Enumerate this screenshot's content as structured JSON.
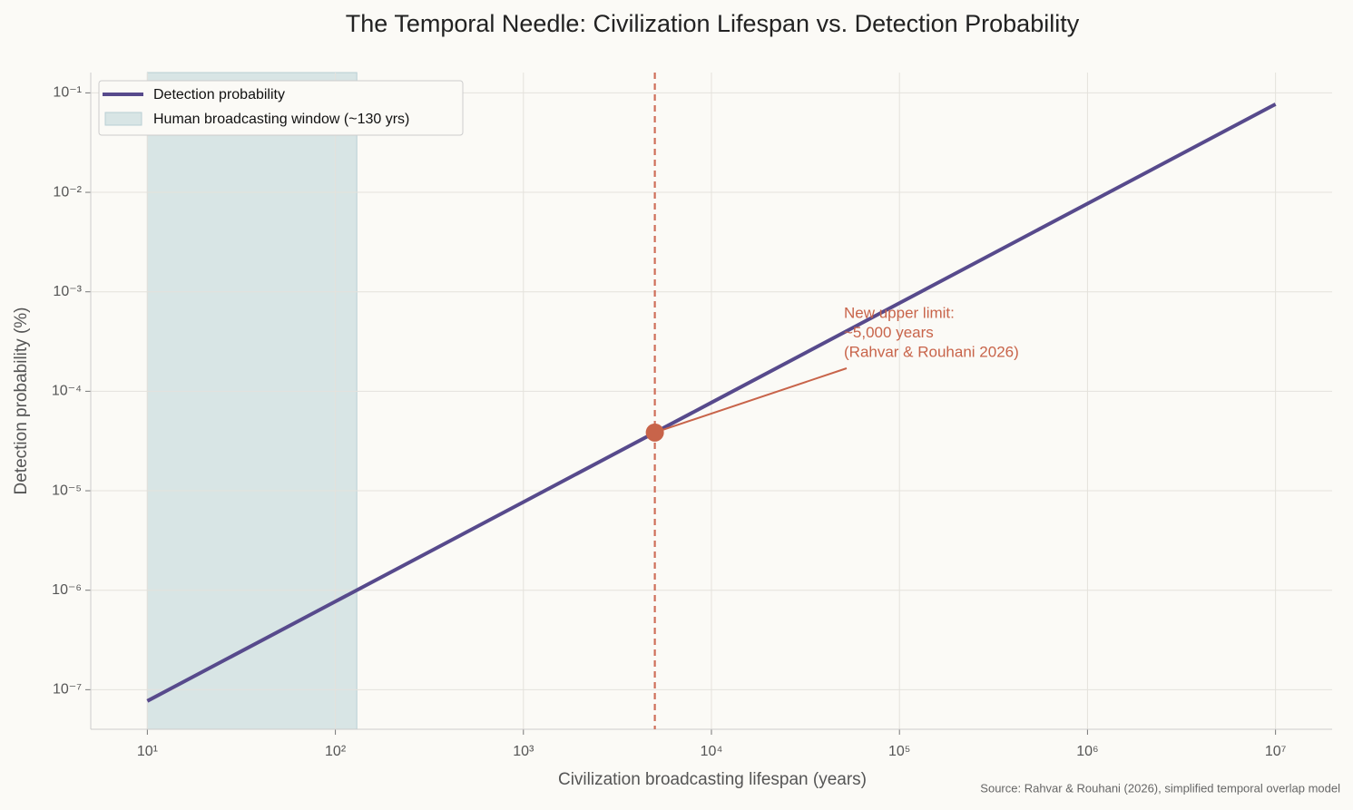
{
  "chart_data": {
    "type": "line",
    "title": "The Temporal Needle: Civilization Lifespan vs. Detection Probability",
    "x_label": "Civilization broadcasting lifespan (years)",
    "y_label": "Detection probability (%)",
    "source": "Source: Rahvar & Rouhani (2026), simplified temporal overlap model",
    "log_x": true,
    "log_y": true,
    "grid": true,
    "legend": "upper left",
    "xlim": [
      5,
      20000000
    ],
    "ylim": [
      4e-08,
      0.16
    ],
    "xticks": [
      {
        "value": 10,
        "label": "10¹"
      },
      {
        "value": 100,
        "label": "10²"
      },
      {
        "value": 1000,
        "label": "10³"
      },
      {
        "value": 10000,
        "label": "10⁴"
      },
      {
        "value": 100000,
        "label": "10⁵"
      },
      {
        "value": 1000000,
        "label": "10⁶"
      },
      {
        "value": 10000000,
        "label": "10⁷"
      }
    ],
    "yticks": [
      {
        "value": 1e-07,
        "label": "10⁻⁷"
      },
      {
        "value": 1e-06,
        "label": "10⁻⁶"
      },
      {
        "value": 1e-05,
        "label": "10⁻⁵"
      },
      {
        "value": 0.0001,
        "label": "10⁻⁴"
      },
      {
        "value": 0.001,
        "label": "10⁻³"
      },
      {
        "value": 0.01,
        "label": "10⁻²"
      },
      {
        "value": 0.1,
        "label": "10⁻¹"
      }
    ],
    "series": [
      {
        "name": "Detection probability",
        "color": "#574a8c",
        "x": [
          10,
          100,
          1000,
          10000,
          100000,
          1000000,
          10000000
        ],
        "values": [
          7.7e-08,
          7.7e-07,
          7.7e-06,
          7.7e-05,
          0.00077,
          0.0077,
          0.077
        ]
      }
    ],
    "span": {
      "name": "Human broadcasting window (~130 yrs)",
      "start": 10,
      "end": 130,
      "color": "#d8e5e5"
    },
    "marker": {
      "x": 5000,
      "y": 3.85e-05,
      "color": "#c8644a"
    },
    "annotation": [
      "New upper limit:",
      "~5,000 years",
      "(Rahvar & Rouhani 2026)"
    ]
  }
}
